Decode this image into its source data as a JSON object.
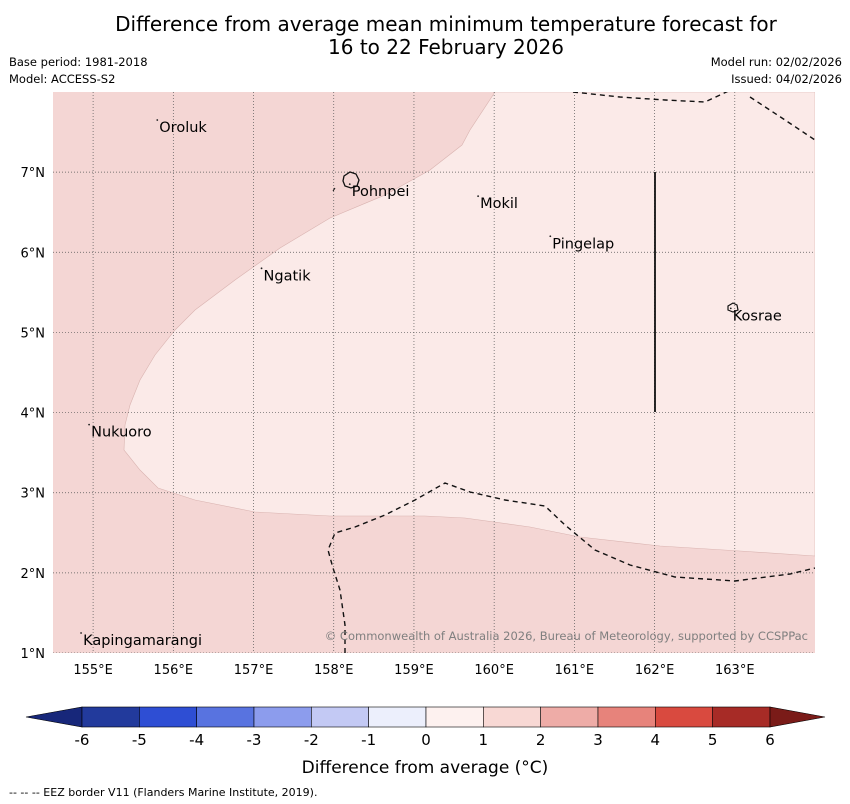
{
  "title": {
    "line1": "Difference from average mean minimum temperature forecast for",
    "line2": "16 to 22 February 2026"
  },
  "meta_left": {
    "base_period": "Base period: 1981-2018",
    "model": "Model: ACCESS-S2"
  },
  "meta_right": {
    "model_run": "Model run: 02/02/2026",
    "issued": "Issued: 04/02/2026"
  },
  "map": {
    "lon_range": [
      154.5,
      164.0
    ],
    "lat_range": [
      1.0,
      8.0
    ],
    "lon_ticks": [
      155,
      156,
      157,
      158,
      159,
      160,
      161,
      162,
      163
    ],
    "lon_labels": [
      "155°E",
      "156°E",
      "157°E",
      "158°E",
      "159°E",
      "160°E",
      "161°E",
      "162°E",
      "163°E"
    ],
    "lat_ticks": [
      1,
      2,
      3,
      4,
      5,
      6,
      7
    ],
    "lat_labels": [
      "1°N",
      "2°N",
      "3°N",
      "4°N",
      "5°N",
      "6°N",
      "7°N"
    ],
    "zones": [
      {
        "category": "1 to 2",
        "color": "#f4d6d4",
        "description": "western and southern areas"
      },
      {
        "category": "0 to 1",
        "color": "#fbeae8",
        "description": "central and eastern areas"
      }
    ],
    "places": [
      {
        "name": "Oroluk",
        "lon": 155.8,
        "lat": 7.65
      },
      {
        "name": "Pohnpei",
        "lon": 158.2,
        "lat": 6.85
      },
      {
        "name": "Mokil",
        "lon": 159.8,
        "lat": 6.7
      },
      {
        "name": "Pingelap",
        "lon": 160.7,
        "lat": 6.2
      },
      {
        "name": "Ngatik",
        "lon": 157.1,
        "lat": 5.8
      },
      {
        "name": "Kosrae",
        "lon": 162.95,
        "lat": 5.3
      },
      {
        "name": "Nukuoro",
        "lon": 154.95,
        "lat": 3.85
      },
      {
        "name": "Kapingamarangi",
        "lon": 154.85,
        "lat": 1.25
      }
    ],
    "copyright": "© Commonwealth of Australia 2026, Bureau of Meteorology, supported by CCSPPac"
  },
  "colorbar": {
    "ticks": [
      "-6",
      "-5",
      "-4",
      "-3",
      "-2",
      "-1",
      "0",
      "1",
      "2",
      "3",
      "4",
      "5",
      "6"
    ],
    "colors": [
      "#223a9c",
      "#2e4ed4",
      "#5873e0",
      "#8c9ced",
      "#c3c9f4",
      "#eceffc",
      "#fdf1ef",
      "#f8d8d4",
      "#eeaca7",
      "#e7837b",
      "#d94a3f",
      "#a72b26"
    ],
    "under_color": "#17277a",
    "over_color": "#7a1b18",
    "title": "Difference from average (°C)"
  },
  "eez_note": "--  --  -- EEZ border V11 (Flanders Marine Institute, 2019)."
}
